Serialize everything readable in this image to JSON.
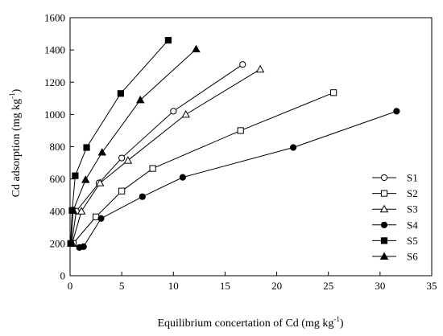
{
  "chart_data": {
    "type": "line",
    "xlabel_main": "Equilibrium concertation of Cd (mg kg",
    "xlabel_sup": "-1",
    "xlabel_end": ")",
    "ylabel_main": "Cd adsorption (mg kg",
    "ylabel_sup": "-1",
    "ylabel_end": ")",
    "xlim": [
      0,
      35
    ],
    "ylim": [
      0,
      1600
    ],
    "xticks": [
      0,
      5,
      10,
      15,
      20,
      25,
      30,
      35
    ],
    "yticks": [
      0,
      200,
      400,
      600,
      800,
      1000,
      1200,
      1400,
      1600
    ],
    "grid": false,
    "legend_position": "bottom-right",
    "series": [
      {
        "name": "S1",
        "marker": "circle-open",
        "points": [
          [
            0.15,
            200
          ],
          [
            0.6,
            400
          ],
          [
            2.8,
            575
          ],
          [
            5.0,
            730
          ],
          [
            10.0,
            1020
          ],
          [
            16.7,
            1310
          ]
        ]
      },
      {
        "name": "S2",
        "marker": "square-open",
        "points": [
          [
            0.3,
            200
          ],
          [
            2.5,
            365
          ],
          [
            5.0,
            525
          ],
          [
            8.0,
            665
          ],
          [
            16.5,
            900
          ],
          [
            25.5,
            1135
          ]
        ]
      },
      {
        "name": "S3",
        "marker": "triangle-open",
        "points": [
          [
            0.2,
            200
          ],
          [
            1.1,
            400
          ],
          [
            2.9,
            575
          ],
          [
            5.6,
            715
          ],
          [
            11.2,
            1000
          ],
          [
            18.4,
            1280
          ]
        ]
      },
      {
        "name": "S4",
        "marker": "circle-filled",
        "points": [
          [
            0.9,
            175
          ],
          [
            1.3,
            180
          ],
          [
            3.0,
            355
          ],
          [
            7.0,
            490
          ],
          [
            10.9,
            610
          ],
          [
            21.6,
            795
          ],
          [
            31.6,
            1020
          ]
        ]
      },
      {
        "name": "S5",
        "marker": "square-filled",
        "points": [
          [
            0.05,
            200
          ],
          [
            0.2,
            405
          ],
          [
            0.5,
            620
          ],
          [
            1.6,
            795
          ],
          [
            4.9,
            1130
          ],
          [
            9.5,
            1460
          ]
        ]
      },
      {
        "name": "S6",
        "marker": "triangle-filled",
        "points": [
          [
            0.1,
            200
          ],
          [
            0.3,
            405
          ],
          [
            1.5,
            595
          ],
          [
            3.1,
            765
          ],
          [
            6.8,
            1090
          ],
          [
            12.2,
            1405
          ]
        ]
      }
    ]
  }
}
